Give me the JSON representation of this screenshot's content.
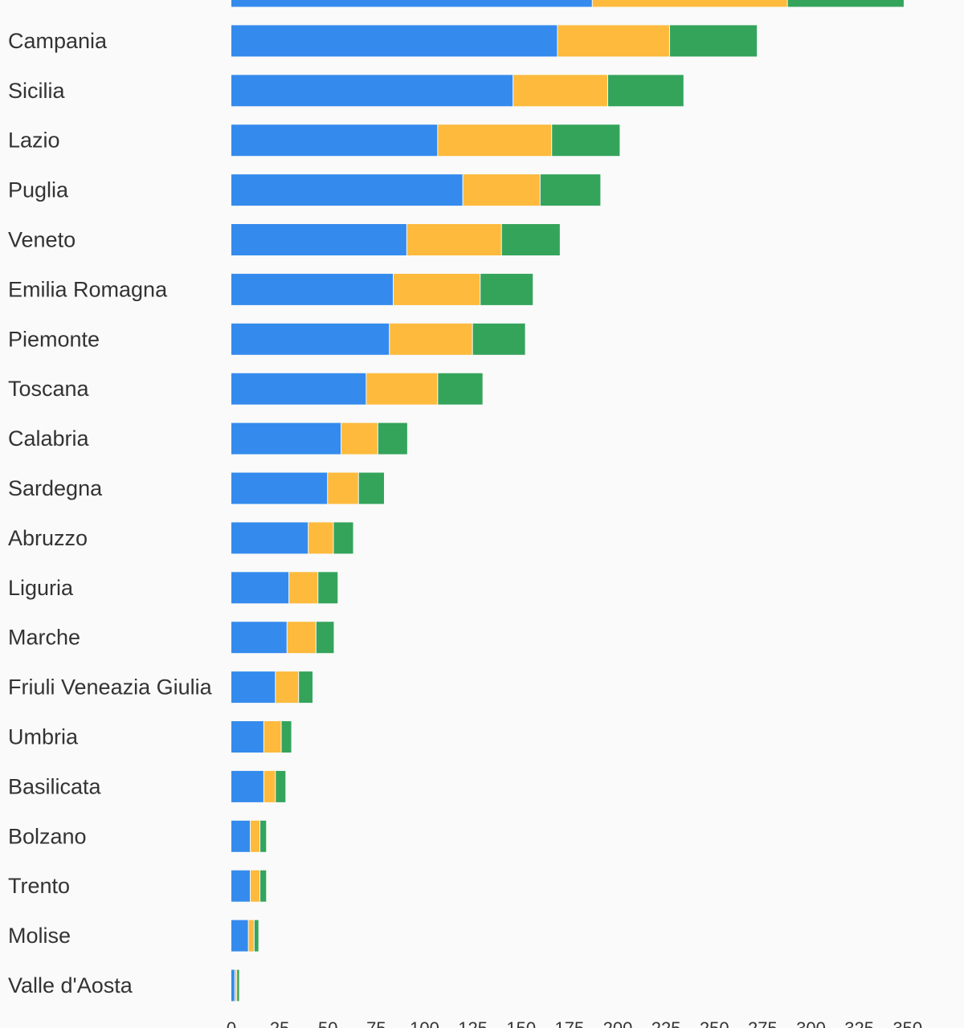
{
  "chart_data": {
    "type": "bar",
    "orientation": "horizontal",
    "stacked": true,
    "categories": [
      "",
      "Campania",
      "Sicilia",
      "Lazio",
      "Puglia",
      "Veneto",
      "Emilia Romagna",
      "Piemonte",
      "Toscana",
      "Calabria",
      "Sardegna",
      "Abruzzo",
      "Liguria",
      "Marche",
      "Friuli Veneazia Giulia",
      "Umbria",
      "Basilicata",
      "Bolzano",
      "Trento",
      "Molise",
      "Valle d'Aosta"
    ],
    "series": [
      {
        "color": "#348bed",
        "values": [
          187,
          169,
          146,
          107,
          120,
          91,
          84,
          82,
          70,
          57,
          50,
          40,
          30,
          29,
          23,
          17,
          17,
          10,
          10,
          9,
          2
        ]
      },
      {
        "color": "#fdba3c",
        "values": [
          101,
          58,
          49,
          59,
          40,
          49,
          45,
          43,
          37,
          19,
          16,
          13,
          15,
          15,
          12,
          9,
          6,
          5,
          5,
          3,
          1
        ]
      },
      {
        "color": "#34a45b",
        "values": [
          60,
          45,
          39,
          35,
          31,
          30,
          27,
          27,
          23,
          15,
          13,
          10,
          10,
          9,
          7,
          5,
          5,
          3,
          3,
          2,
          1
        ]
      }
    ],
    "xlim": [
      0,
      350
    ],
    "xticks": [
      0,
      25,
      50,
      75,
      100,
      125,
      150,
      175,
      200,
      225,
      250,
      275,
      300,
      325,
      350
    ],
    "grid": false,
    "legend": "none"
  }
}
